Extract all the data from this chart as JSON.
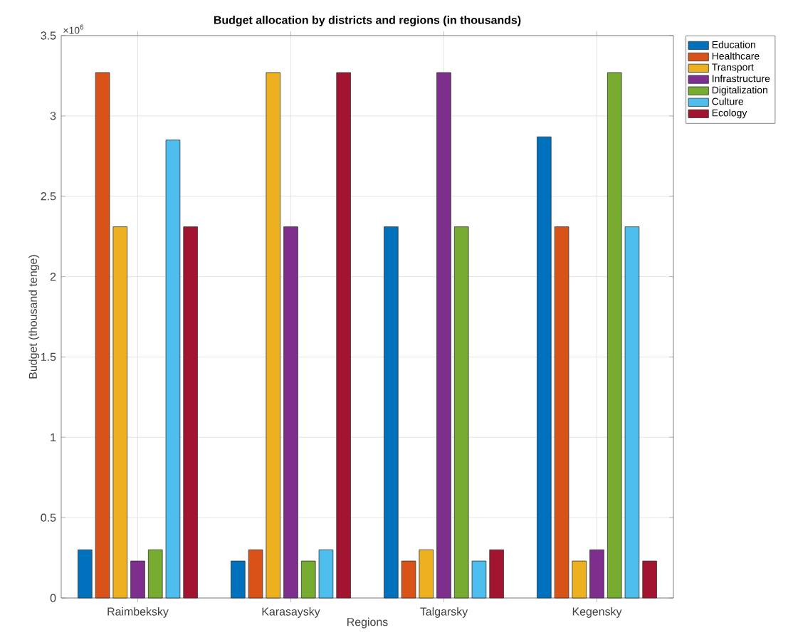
{
  "chart_data": {
    "type": "bar",
    "title": "Budget allocation by districts and regions (in thousands)",
    "xlabel": "Regions",
    "ylabel": "Budget (thousand tenge)",
    "categories": [
      "Raimbeksky",
      "Karasaysky",
      "Talgarsky",
      "Kegensky"
    ],
    "series": [
      {
        "name": "Education",
        "color": "#0072bd",
        "values": [
          0.3,
          0.23,
          2.31,
          2.87
        ]
      },
      {
        "name": "Healthcare",
        "color": "#d95319",
        "values": [
          3.27,
          0.3,
          0.23,
          2.31
        ]
      },
      {
        "name": "Transport",
        "color": "#edb120",
        "values": [
          2.31,
          3.27,
          0.3,
          0.23
        ]
      },
      {
        "name": "Infrastructure",
        "color": "#7e2f8e",
        "values": [
          0.23,
          2.31,
          3.27,
          0.3
        ]
      },
      {
        "name": "Digitalization",
        "color": "#77ac30",
        "values": [
          0.3,
          0.23,
          2.31,
          3.27
        ]
      },
      {
        "name": "Culture",
        "color": "#4dbeee",
        "values": [
          2.85,
          0.3,
          0.23,
          2.31
        ]
      },
      {
        "name": "Ecology",
        "color": "#a2142f",
        "values": [
          2.31,
          3.27,
          0.3,
          0.23
        ]
      }
    ],
    "ylim": [
      0,
      3.5
    ],
    "yticks": [
      0,
      0.5,
      1,
      1.5,
      2,
      2.5,
      3,
      3.5
    ],
    "annotations": [
      "×10$^{6}$"
    ],
    "grid": true,
    "legend": "top right"
  }
}
